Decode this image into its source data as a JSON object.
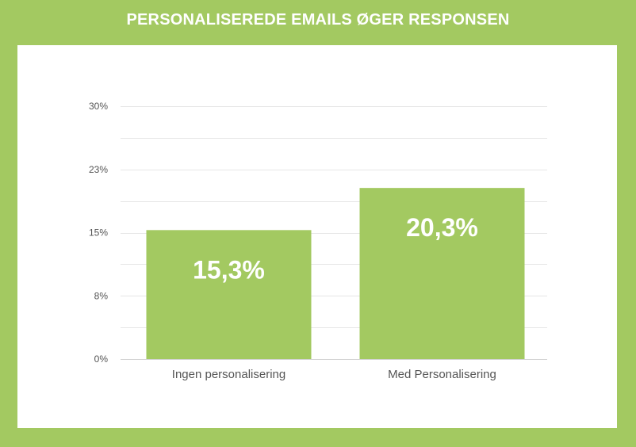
{
  "title": "PERSONALISEREDE EMAILS ØGER RESPONSEN",
  "colors": {
    "background": "#a3c961",
    "bar": "#a3c961",
    "grid": "#e6e6e6",
    "text": "#555555"
  },
  "chart_data": {
    "type": "bar",
    "title": "PERSONALISEREDE EMAILS ØGER RESPONSEN",
    "categories": [
      "Ingen personalisering",
      "Med Personalisering"
    ],
    "values": [
      15.3,
      20.3
    ],
    "data_labels": [
      "15,3%",
      "20,3%"
    ],
    "ylim": [
      0,
      30
    ],
    "yticks": [
      0,
      7.5,
      15,
      22.5,
      30
    ],
    "ytick_labels": [
      "0%",
      "8%",
      "15%",
      "23%",
      "30%"
    ],
    "grid": true,
    "xlabel": "",
    "ylabel": ""
  }
}
